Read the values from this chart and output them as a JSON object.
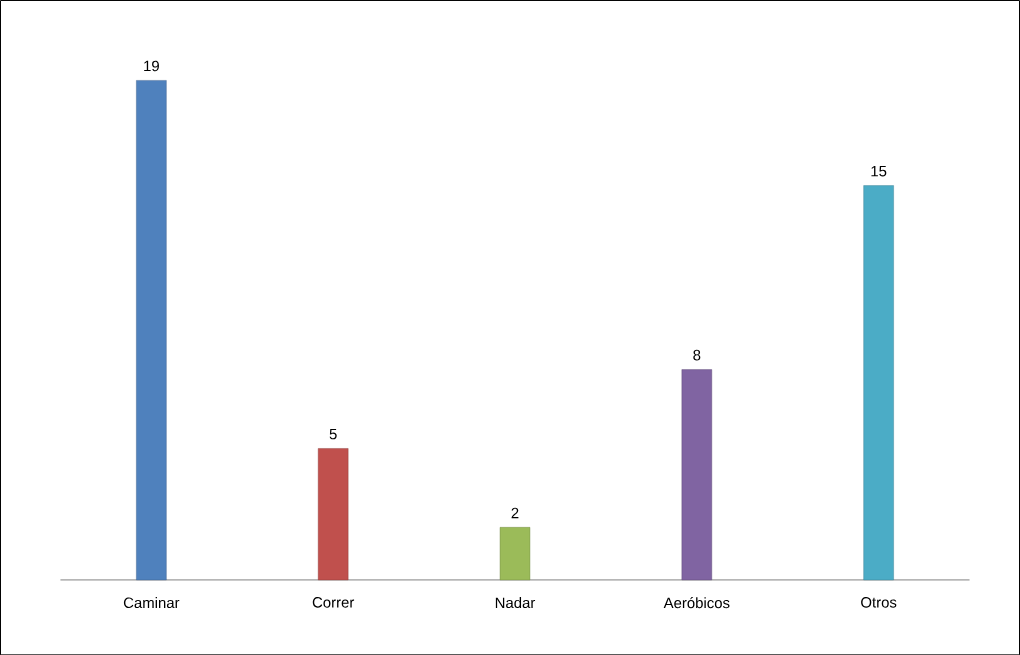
{
  "chart_data": {
    "type": "bar",
    "categories": [
      "Caminar",
      "Correr",
      "Nadar",
      "Aeróbicos",
      "Otros"
    ],
    "values": [
      19,
      5,
      2,
      8,
      15
    ],
    "colors": [
      "#4f81bd",
      "#c0504d",
      "#9bbb59",
      "#8064a2",
      "#4bacc6"
    ],
    "data_labels": true
  }
}
